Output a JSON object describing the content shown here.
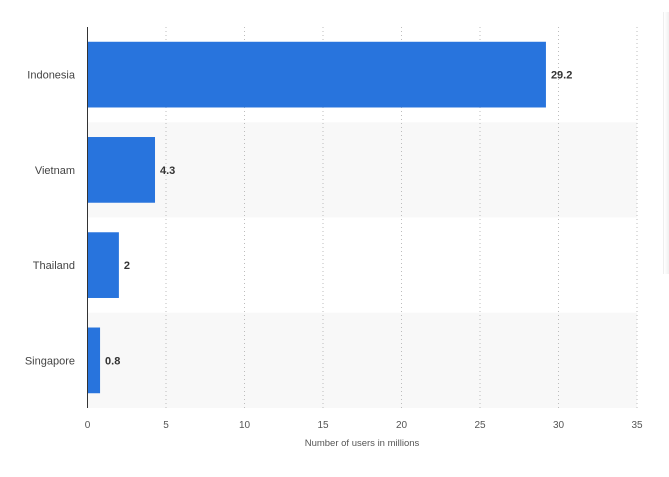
{
  "chart_data": {
    "type": "bar",
    "orientation": "horizontal",
    "categories": [
      "Indonesia",
      "Vietnam",
      "Thailand",
      "Singapore"
    ],
    "values": [
      29.2,
      4.3,
      2,
      0.8
    ],
    "value_labels": [
      "29.2",
      "4.3",
      "2",
      "0.8"
    ],
    "title": "",
    "xlabel": "Number of users in millions",
    "ylabel": "",
    "xlim": [
      0,
      35
    ],
    "xticks": [
      0,
      5,
      10,
      15,
      20,
      25,
      30,
      35
    ],
    "xtick_labels": [
      "0",
      "5",
      "10",
      "15",
      "20",
      "25",
      "30",
      "35"
    ],
    "grid": true,
    "legend": "none",
    "bar_color": "#2874dd",
    "alternate_band_color": "#f8f8f8"
  }
}
